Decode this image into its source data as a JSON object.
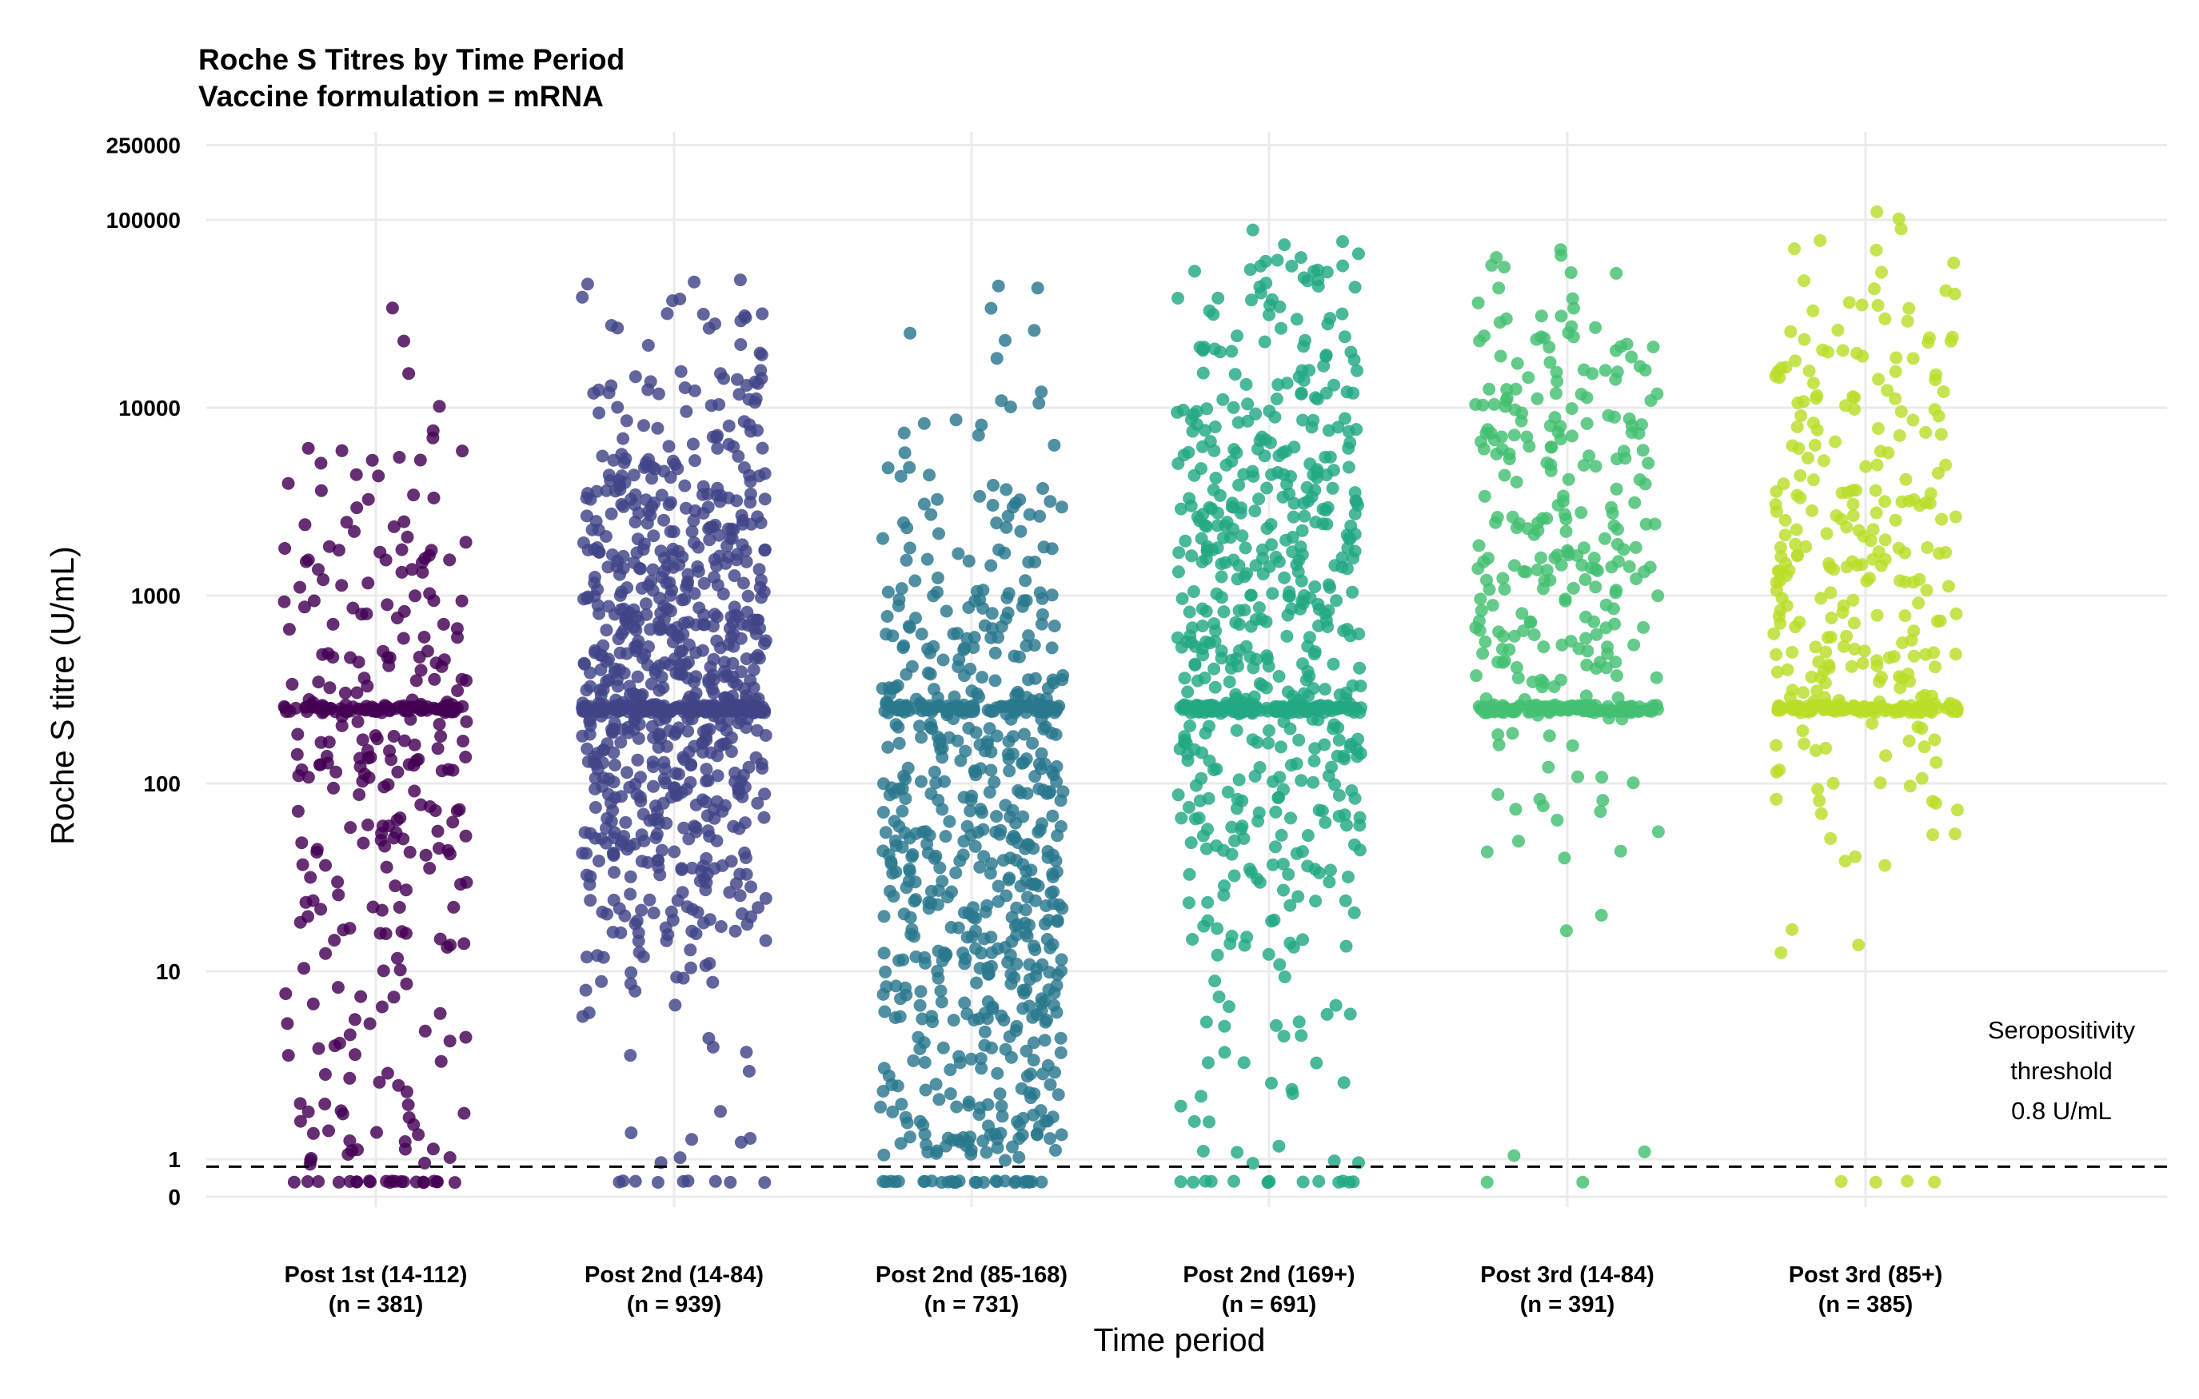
{
  "chart_data": {
    "type": "scatter",
    "subtype": "jitter strip plot",
    "title": "Roche S Titres by Time Period",
    "subtitle": "Vaccine formulation = mRNA",
    "xlabel": "Time period",
    "ylabel": "Roche S titre (U/mL)",
    "y_scale": "log (pseudo-log near zero)",
    "ylim": [
      0,
      350000
    ],
    "y_ticks": [
      "250000",
      "100000",
      "10000",
      "1000",
      "100",
      "10",
      "1",
      "0"
    ],
    "grid": true,
    "legend": "none",
    "categories": [
      {
        "label": "Post 1st (14-112)",
        "n_label": "(n = 381)",
        "n": 381,
        "color": "#440154"
      },
      {
        "label": "Post 2nd (14-84)",
        "n_label": "(n = 939)",
        "n": 939,
        "color": "#414487"
      },
      {
        "label": "Post 2nd (85-168)",
        "n_label": "(n = 731)",
        "n": 731,
        "color": "#2A788E"
      },
      {
        "label": "Post 2nd (169+)",
        "n_label": "(n = 691)",
        "n": 691,
        "color": "#22A884"
      },
      {
        "label": "Post 3rd (14-84)",
        "n_label": "(n = 391)",
        "n": 391,
        "color": "#43BF71"
      },
      {
        "label": "Post 3rd (85+)",
        "n_label": "(n = 385)",
        "n": 385,
        "color": "#BADE28"
      }
    ],
    "approx_distribution": [
      {
        "median_band": 250,
        "max": 65000,
        "share_at_upper_limit_250": 0.2,
        "share_below_threshold": 0.06
      },
      {
        "median_band": 250,
        "max": 50000,
        "share_at_upper_limit_250": 0.18,
        "share_below_threshold": 0.02
      },
      {
        "median_band": 250,
        "max": 80000,
        "share_at_upper_limit_250": 0.1,
        "share_below_threshold": 0.05
      },
      {
        "median_band": 250,
        "max": 90000,
        "share_at_upper_limit_250": 0.15,
        "share_below_threshold": 0.03
      },
      {
        "median_band": 250,
        "max": 250000,
        "share_at_upper_limit_250": 0.3,
        "share_below_threshold": 0.01
      },
      {
        "median_band": 250,
        "max": 120000,
        "share_at_upper_limit_250": 0.3,
        "share_below_threshold": 0.01
      }
    ],
    "reference_line": {
      "value": 0.8,
      "style": "dashed",
      "label_lines": [
        "Seropositivity",
        "threshold",
        "0.8 U/mL"
      ]
    }
  }
}
